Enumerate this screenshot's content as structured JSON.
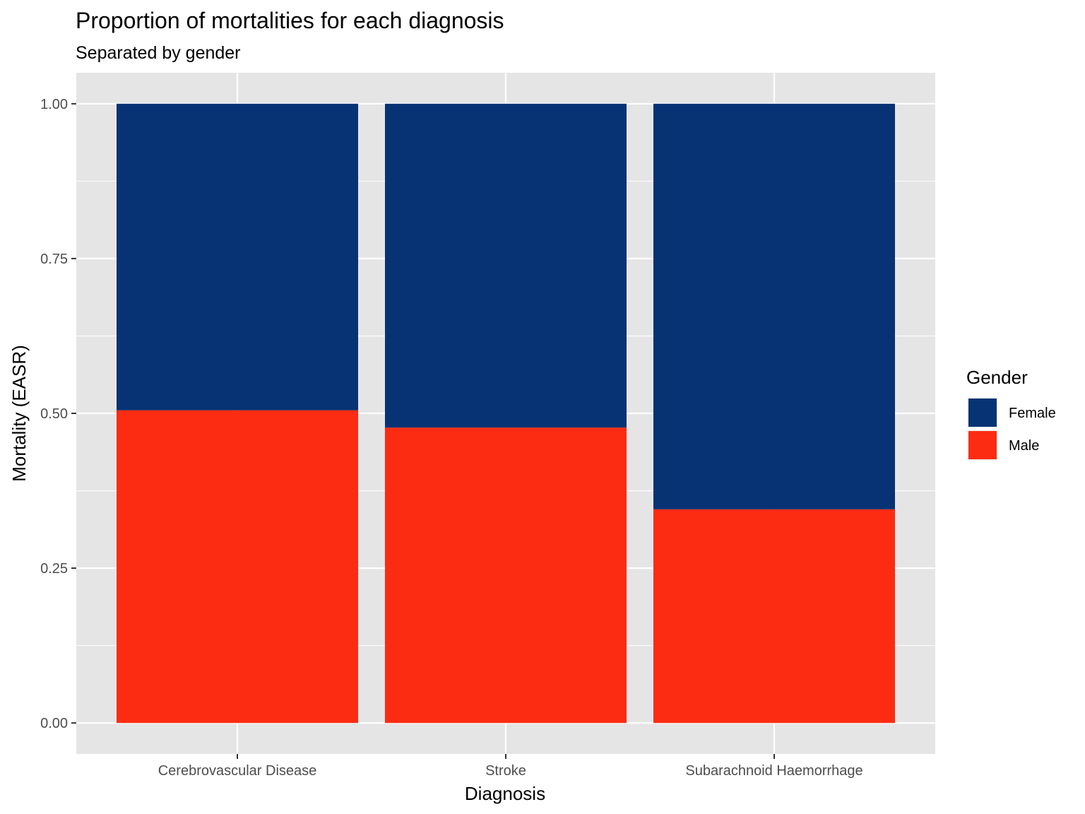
{
  "chart_data": {
    "type": "bar",
    "stacked": true,
    "title": "Proportion of mortalities for each diagnosis",
    "subtitle": "Separated by gender",
    "xlabel": "Diagnosis",
    "ylabel": "Mortality (EASR)",
    "categories": [
      "Cerebrovascular Disease",
      "Stroke",
      "Subarachnoid Haemorrhage"
    ],
    "series": [
      {
        "name": "Male",
        "color": "#fc2c13",
        "values": [
          0.505,
          0.477,
          0.345
        ]
      },
      {
        "name": "Female",
        "color": "#073374",
        "values": [
          0.495,
          0.523,
          0.655
        ]
      }
    ],
    "ylim": [
      -0.05,
      1.05
    ],
    "yticks": [
      0.0,
      0.25,
      0.5,
      0.75,
      1.0
    ],
    "ytick_labels": [
      "0.00",
      "0.25",
      "0.50",
      "0.75",
      "1.00"
    ],
    "grid": true,
    "panel_background": "#e5e5e5",
    "legend": {
      "title": "Gender",
      "position": "right",
      "entries": [
        {
          "label": "Female",
          "color": "#073374"
        },
        {
          "label": "Male",
          "color": "#fc2c13"
        }
      ]
    }
  }
}
